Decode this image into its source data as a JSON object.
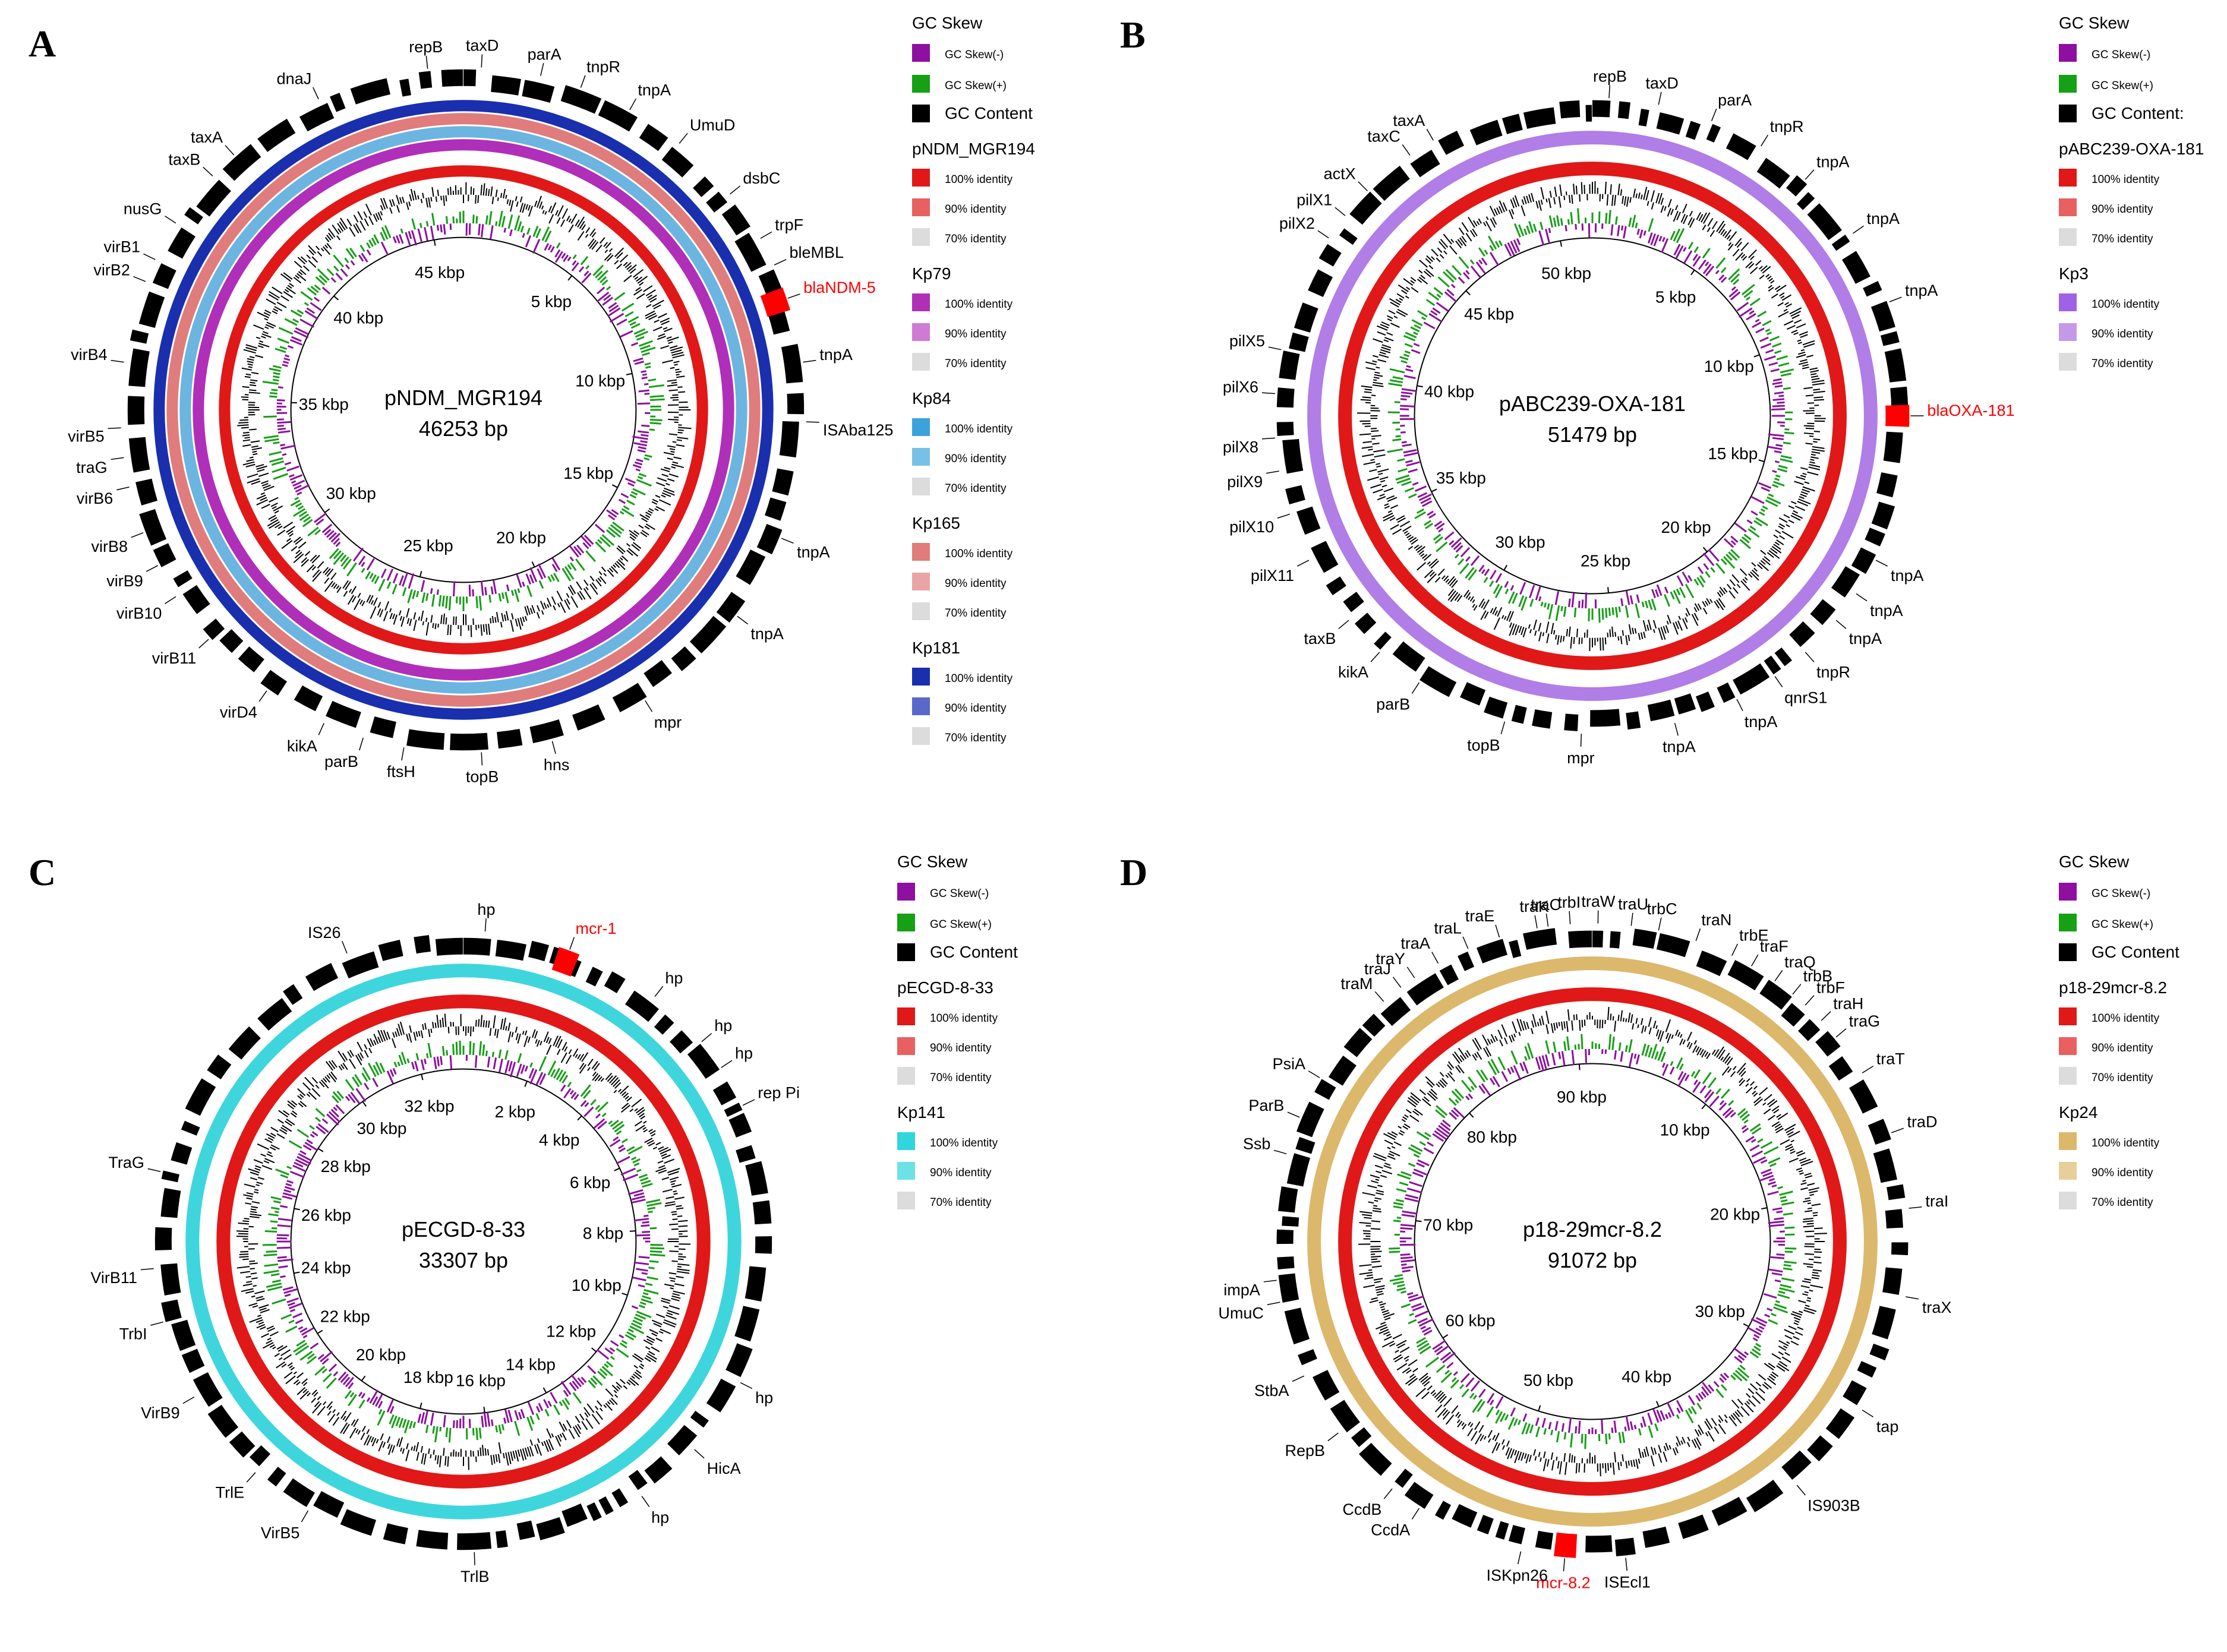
{
  "panels": [
    {
      "id": "A",
      "label": "A",
      "plasmid": "pNDM_MGR194",
      "size_text": "46253 bp",
      "kbp_total": 46.253,
      "kbp_labels": [
        "5 kbp",
        "10 kbp",
        "15 kbp",
        "20 kbp",
        "25 kbp",
        "30 kbp",
        "35 kbp",
        "40 kbp",
        "45 kbp"
      ],
      "ring_colors": [
        "#e01818",
        "#ffffff",
        "#b02fb8",
        "#6bb5e0",
        "#e07c7c",
        "#1a2fae"
      ],
      "genes": [
        {
          "name": "repB",
          "angle": -6,
          "red": false
        },
        {
          "name": "taxD",
          "angle": 3,
          "red": false
        },
        {
          "name": "parA",
          "angle": 13,
          "red": false
        },
        {
          "name": "tnpR",
          "angle": 20,
          "red": false
        },
        {
          "name": "tnpA",
          "angle": 29,
          "red": false
        },
        {
          "name": "UmuD",
          "angle": 39,
          "red": false
        },
        {
          "name": "dsbC",
          "angle": 51,
          "red": false
        },
        {
          "name": "trpF",
          "angle": 60,
          "red": false
        },
        {
          "name": "bleMBL",
          "angle": 65,
          "red": false
        },
        {
          "name": "blaNDM-5",
          "angle": 71,
          "red": true
        },
        {
          "name": "tnpA",
          "angle": 82,
          "red": false
        },
        {
          "name": "ISAba125",
          "angle": 92,
          "red": false
        },
        {
          "name": "tnpA",
          "angle": 112,
          "red": false
        },
        {
          "name": "tnpA",
          "angle": 127,
          "red": false
        },
        {
          "name": "mpr",
          "angle": 148,
          "red": false
        },
        {
          "name": "hns",
          "angle": 165,
          "red": false
        },
        {
          "name": "topB",
          "angle": 177,
          "red": false
        },
        {
          "name": "ftsH",
          "angle": 190,
          "red": false
        },
        {
          "name": "parB",
          "angle": 197,
          "red": false
        },
        {
          "name": "kikA",
          "angle": 204,
          "red": false
        },
        {
          "name": "virD4",
          "angle": 215,
          "red": false
        },
        {
          "name": "virB11",
          "angle": 228,
          "red": false
        },
        {
          "name": "virB10",
          "angle": 237,
          "red": false
        },
        {
          "name": "virB9",
          "angle": 243,
          "red": false
        },
        {
          "name": "virB8",
          "angle": 249,
          "red": false
        },
        {
          "name": "virB6",
          "angle": 257,
          "red": false
        },
        {
          "name": "traG",
          "angle": 262,
          "red": false
        },
        {
          "name": "virB5",
          "angle": 267,
          "red": false
        },
        {
          "name": "virB4",
          "angle": 278,
          "red": false
        },
        {
          "name": "virB2",
          "angle": 292,
          "red": false
        },
        {
          "name": "virB1",
          "angle": 296,
          "red": false
        },
        {
          "name": "nusG",
          "angle": 303,
          "red": false
        },
        {
          "name": "taxB",
          "angle": 313,
          "red": false
        },
        {
          "name": "taxA",
          "angle": 318,
          "red": false
        },
        {
          "name": "dnaJ",
          "angle": 335,
          "red": false
        }
      ],
      "legend": {
        "gc_title": "GC Skew",
        "gc_minus": "GC Skew(-)",
        "gc_plus": "GC Skew(+)",
        "gc_content": "GC Content",
        "groups": [
          {
            "name": "pNDM_MGR194",
            "colors": [
              "#e01818",
              "#e86060",
              "#dcdcdc"
            ],
            "labels": [
              "100% identity",
              "90% identity",
              "70% identity"
            ]
          },
          {
            "name": "Kp79",
            "colors": [
              "#b02fb8",
              "#d07ad4",
              "#dcdcdc"
            ],
            "labels": [
              "100% identity",
              "90% identity",
              "70% identity"
            ]
          },
          {
            "name": "Kp84",
            "colors": [
              "#3aa3dc",
              "#79c0e6",
              "#dcdcdc"
            ],
            "labels": [
              "100% identity",
              "90% identity",
              "70% identity"
            ]
          },
          {
            "name": "Kp165",
            "colors": [
              "#e07c7c",
              "#e9a4a4",
              "#dcdcdc"
            ],
            "labels": [
              "100% identity",
              "90% identity",
              "70% identity"
            ]
          },
          {
            "name": "Kp181",
            "colors": [
              "#1a2fae",
              "#5a68c8",
              "#dcdcdc"
            ],
            "labels": [
              "100% identity",
              "90% identity",
              "70% identity"
            ]
          }
        ]
      }
    },
    {
      "id": "B",
      "label": "B",
      "plasmid": "pABC239-OXA-181",
      "size_text": "51479 bp",
      "kbp_total": 51.479,
      "kbp_labels": [
        "5 kbp",
        "10 kbp",
        "15 kbp",
        "20 kbp",
        "25 kbp",
        "30 kbp",
        "35 kbp",
        "40 kbp",
        "45 kbp",
        "50 kbp"
      ],
      "ring_colors": [
        "#e01818",
        "#ffffff",
        "#b07ee6"
      ],
      "genes": [
        {
          "name": "repB",
          "angle": 3,
          "red": false
        },
        {
          "name": "taxD",
          "angle": 12,
          "red": false
        },
        {
          "name": "parA",
          "angle": 22,
          "red": false
        },
        {
          "name": "tnpR",
          "angle": 32,
          "red": false
        },
        {
          "name": "tnpA",
          "angle": 42,
          "red": false
        },
        {
          "name": "tnpA",
          "angle": 55,
          "red": false
        },
        {
          "name": "tnpA",
          "angle": 69,
          "red": false
        },
        {
          "name": "blaOXA-181",
          "angle": 90,
          "red": true
        },
        {
          "name": "tnpA",
          "angle": 117,
          "red": false
        },
        {
          "name": "tnpA",
          "angle": 124,
          "red": false
        },
        {
          "name": "tnpA",
          "angle": 130,
          "red": false
        },
        {
          "name": "tnpR",
          "angle": 138,
          "red": false
        },
        {
          "name": "qnrS1",
          "angle": 145,
          "red": false
        },
        {
          "name": "tnpA",
          "angle": 153,
          "red": false
        },
        {
          "name": "tnpA",
          "angle": 165,
          "red": false
        },
        {
          "name": "mpr",
          "angle": 182,
          "red": false
        },
        {
          "name": "topB",
          "angle": 196,
          "red": false
        },
        {
          "name": "parB",
          "angle": 213,
          "red": false
        },
        {
          "name": "kikA",
          "angle": 222,
          "red": false
        },
        {
          "name": "taxB",
          "angle": 230,
          "red": false
        },
        {
          "name": "pilX11",
          "angle": 243,
          "red": false
        },
        {
          "name": "pilX10",
          "angle": 252,
          "red": false
        },
        {
          "name": "pilX9",
          "angle": 260,
          "red": false
        },
        {
          "name": "pilX8",
          "angle": 266,
          "red": false
        },
        {
          "name": "pilX6",
          "angle": 274,
          "red": false
        },
        {
          "name": "pilX5",
          "angle": 282,
          "red": false
        },
        {
          "name": "pilX2",
          "angle": 304,
          "red": false
        },
        {
          "name": "pilX1",
          "angle": 309,
          "red": false
        },
        {
          "name": "actX",
          "angle": 315,
          "red": false
        },
        {
          "name": "taxC",
          "angle": 325,
          "red": false
        },
        {
          "name": "taxA",
          "angle": 330,
          "red": false
        }
      ],
      "legend": {
        "gc_title": "GC Skew",
        "gc_minus": "GC Skew(-)",
        "gc_plus": "GC Skew(+)",
        "gc_content": "GC Content:",
        "groups": [
          {
            "name": "pABC239-OXA-181",
            "colors": [
              "#e01818",
              "#e86060",
              "#dcdcdc"
            ],
            "labels": [
              "100% identity",
              "90% identity",
              "70% identity"
            ]
          },
          {
            "name": "Kp3",
            "colors": [
              "#9f62e6",
              "#c39ae8",
              "#dcdcdc"
            ],
            "labels": [
              "100% identity",
              "90% identity",
              "70% identity"
            ]
          }
        ]
      }
    },
    {
      "id": "C",
      "label": "C",
      "plasmid": "pECGD-8-33",
      "size_text": "33307 bp",
      "kbp_total": 33.307,
      "kbp_labels": [
        "2 kbp",
        "4 kbp",
        "6 kbp",
        "8 kbp",
        "10 kbp",
        "12 kbp",
        "14 kbp",
        "16 kbp",
        "18 kbp",
        "20 kbp",
        "22 kbp",
        "24 kbp",
        "26 kbp",
        "28 kbp",
        "30 kbp",
        "32 kbp"
      ],
      "ring_colors": [
        "#e01818",
        "#ffffff",
        "#3ed6dc"
      ],
      "genes": [
        {
          "name": "IS26",
          "angle": -22,
          "red": false
        },
        {
          "name": "hp",
          "angle": 4,
          "red": false
        },
        {
          "name": "mcr-1",
          "angle": 20,
          "red": true
        },
        {
          "name": "hp",
          "angle": 38,
          "red": false
        },
        {
          "name": "hp",
          "angle": 50,
          "red": false
        },
        {
          "name": "hp",
          "angle": 56,
          "red": false
        },
        {
          "name": "rep Pi",
          "angle": 64,
          "red": false
        },
        {
          "name": "hp",
          "angle": 117,
          "red": false
        },
        {
          "name": "HicA",
          "angle": 132,
          "red": false
        },
        {
          "name": "hp",
          "angle": 145,
          "red": false
        },
        {
          "name": "TrlB",
          "angle": 178,
          "red": false
        },
        {
          "name": "VirB5",
          "angle": 210,
          "red": false
        },
        {
          "name": "TrlE",
          "angle": 222,
          "red": false
        },
        {
          "name": "VirB9",
          "angle": 240,
          "red": false
        },
        {
          "name": "TrbI",
          "angle": 255,
          "red": false
        },
        {
          "name": "VirB11",
          "angle": 265,
          "red": false
        },
        {
          "name": "TraG",
          "angle": 283,
          "red": false
        }
      ],
      "legend": {
        "gc_title": "GC Skew",
        "gc_minus": "GC Skew(-)",
        "gc_plus": "GC Skew(+)",
        "gc_content": "GC Content",
        "groups": [
          {
            "name": "pECGD-8-33",
            "colors": [
              "#e01818",
              "#e86060",
              "#dcdcdc"
            ],
            "labels": [
              "100% identity",
              "90% identity",
              "70% identity"
            ]
          },
          {
            "name": "Kp141",
            "colors": [
              "#2fd6dc",
              "#6ce2e6",
              "#dcdcdc"
            ],
            "labels": [
              "100% identity",
              "90% identity",
              "70% identity"
            ]
          }
        ]
      }
    },
    {
      "id": "D",
      "label": "D",
      "plasmid": "p18-29mcr-8.2",
      "size_text": "91072 bp",
      "kbp_total": 91.072,
      "kbp_labels": [
        "10 kbp",
        "20 kbp",
        "30 kbp",
        "40 kbp",
        "50 kbp",
        "60 kbp",
        "70 kbp",
        "80 kbp",
        "90 kbp"
      ],
      "ring_colors": [
        "#e01818",
        "#ffffff",
        "#dcb86c"
      ],
      "genes": [
        {
          "name": "traC",
          "angle": -8,
          "red": false
        },
        {
          "name": "trbI",
          "angle": -4,
          "red": false
        },
        {
          "name": "traW",
          "angle": 1,
          "red": false
        },
        {
          "name": "traU",
          "angle": 7,
          "red": false
        },
        {
          "name": "trbC",
          "angle": 12,
          "red": false
        },
        {
          "name": "traN",
          "angle": 19,
          "red": false
        },
        {
          "name": "trbE",
          "angle": 26,
          "red": false
        },
        {
          "name": "traF",
          "angle": 30,
          "red": false
        },
        {
          "name": "traQ",
          "angle": 35,
          "red": false
        },
        {
          "name": "trbB",
          "angle": 39,
          "red": false
        },
        {
          "name": "trbF",
          "angle": 42,
          "red": false
        },
        {
          "name": "traH",
          "angle": 46,
          "red": false
        },
        {
          "name": "traG",
          "angle": 50,
          "red": false
        },
        {
          "name": "traT",
          "angle": 58,
          "red": false
        },
        {
          "name": "traD",
          "angle": 70,
          "red": false
        },
        {
          "name": "traI",
          "angle": 84,
          "red": false
        },
        {
          "name": "traX",
          "angle": 100,
          "red": false
        },
        {
          "name": "tap",
          "angle": 122,
          "red": false
        },
        {
          "name": "IS903B",
          "angle": 140,
          "red": false
        },
        {
          "name": "ISEcl1",
          "angle": 174,
          "red": false
        },
        {
          "name": "mcr-8.2",
          "angle": 185,
          "red": true
        },
        {
          "name": "ISKpn26",
          "angle": 193,
          "red": false
        },
        {
          "name": "CcdA",
          "angle": 213,
          "red": false
        },
        {
          "name": "CcdB",
          "angle": 219,
          "red": false
        },
        {
          "name": "RepB",
          "angle": 233,
          "red": false
        },
        {
          "name": "StbA",
          "angle": 245,
          "red": false
        },
        {
          "name": "UmuC",
          "angle": 259,
          "red": false
        },
        {
          "name": "impA",
          "angle": 263,
          "red": false
        },
        {
          "name": "Ssb",
          "angle": 286,
          "red": false
        },
        {
          "name": "ParB",
          "angle": 293,
          "red": false
        },
        {
          "name": "PsiA",
          "angle": 301,
          "red": false
        },
        {
          "name": "traM",
          "angle": 319,
          "red": false
        },
        {
          "name": "traJ",
          "angle": 323,
          "red": false
        },
        {
          "name": "traY",
          "angle": 326,
          "red": false
        },
        {
          "name": "traA",
          "angle": 331,
          "red": false
        },
        {
          "name": "traL",
          "angle": 337,
          "red": false
        },
        {
          "name": "traE",
          "angle": 343,
          "red": false
        },
        {
          "name": "traK",
          "angle": 350,
          "red": false
        }
      ],
      "legend": {
        "gc_title": "GC Skew",
        "gc_minus": "GC Skew(-)",
        "gc_plus": "GC Skew(+)",
        "gc_content": "GC Content",
        "groups": [
          {
            "name": "p18-29mcr-8.2",
            "colors": [
              "#e01818",
              "#e86060",
              "#dcdcdc"
            ],
            "labels": [
              "100% identity",
              "90% identity",
              "70% identity"
            ]
          },
          {
            "name": "Kp24",
            "colors": [
              "#dcb86c",
              "#e8cf9a",
              "#dcdcdc"
            ],
            "labels": [
              "100% identity",
              "90% identity",
              "70% identity"
            ]
          }
        ]
      }
    }
  ],
  "colors": {
    "gc_minus": "#8e0fa0",
    "gc_plus": "#15a015",
    "gc_content": "#000000",
    "red_gene": "#ff0000"
  }
}
